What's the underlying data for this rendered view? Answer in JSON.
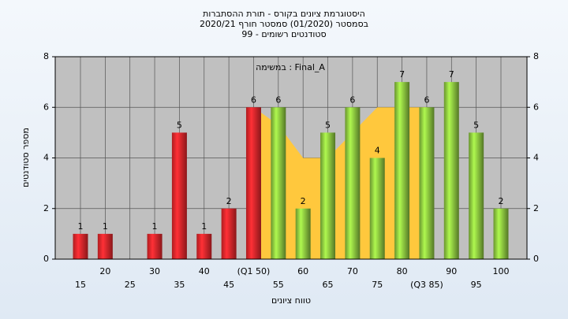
{
  "chart_data": {
    "type": "bar",
    "title": [
      "היסטוגרמת ציונים בקורס - תורת ההסתברות",
      "בסמסטר  (01/2020)  סמסטר חורף 2020/21",
      "סטודנטים רשומים - 99"
    ],
    "annotation": "במשימה : Final_A",
    "xlabel": "טווח ציונים",
    "ylabel": "מספר סטודנטים",
    "categories": [
      "15",
      "20",
      "25",
      "30",
      "35",
      "40",
      "45",
      "(Q1 50)",
      "55",
      "60",
      "65",
      "70",
      "75",
      "80",
      "(Q3 85)",
      "90",
      "95",
      "100"
    ],
    "values": [
      1,
      1,
      null,
      1,
      5,
      1,
      2,
      6,
      6,
      2,
      5,
      6,
      4,
      7,
      6,
      7,
      5,
      2
    ],
    "colors": [
      "#e8262b",
      "#e8262b",
      "#e8262b",
      "#e8262b",
      "#e8262b",
      "#e8262b",
      "#e8262b",
      "#e8262b",
      "#8cc63f",
      "#8cc63f",
      "#8cc63f",
      "#8cc63f",
      "#8cc63f",
      "#8cc63f",
      "#8cc63f",
      "#8cc63f",
      "#8cc63f",
      "#8cc63f"
    ],
    "area_values": [
      null,
      null,
      null,
      null,
      null,
      null,
      null,
      6,
      5.3,
      4,
      4,
      5,
      6,
      6,
      6,
      null,
      null,
      null
    ],
    "area_color": "#ffc83d",
    "ylim": [
      0,
      8
    ],
    "yticks": [
      0,
      2,
      4,
      6,
      8
    ],
    "y2lim": [
      0,
      8
    ],
    "y2ticks": [
      0,
      2,
      4,
      6,
      8
    ],
    "grid": true
  }
}
